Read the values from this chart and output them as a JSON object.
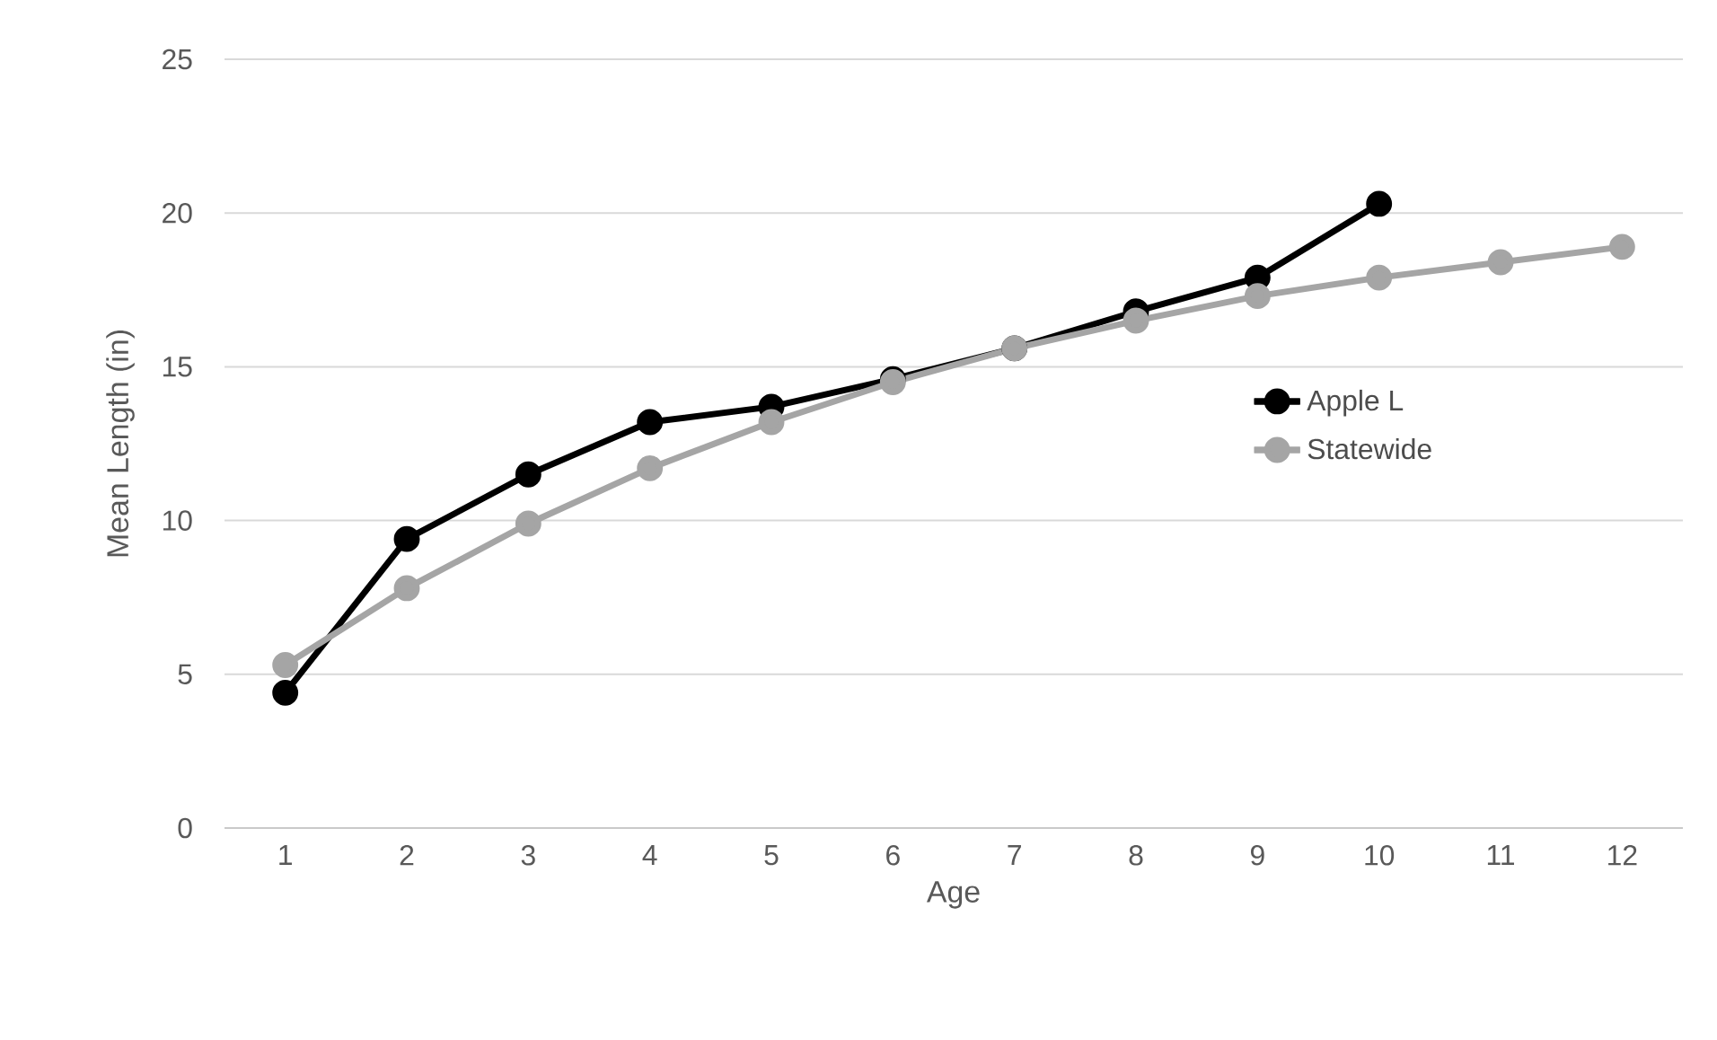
{
  "chart_data": {
    "type": "line",
    "xlabel": "Age",
    "ylabel": "Mean Length (in)",
    "categories": [
      "1",
      "2",
      "3",
      "4",
      "5",
      "6",
      "7",
      "8",
      "9",
      "10",
      "11",
      "12"
    ],
    "series": [
      {
        "name": "Apple L",
        "color": "#000000",
        "values": [
          4.4,
          9.4,
          11.5,
          13.2,
          13.7,
          14.6,
          15.6,
          16.8,
          17.9,
          20.3,
          null,
          null
        ]
      },
      {
        "name": "Statewide",
        "color": "#a5a5a5",
        "values": [
          5.3,
          7.8,
          9.9,
          11.7,
          13.2,
          14.5,
          15.6,
          16.5,
          17.3,
          17.9,
          18.4,
          18.9
        ]
      }
    ],
    "ylim": [
      0,
      25
    ],
    "yticks": [
      0,
      5,
      10,
      15,
      20,
      25
    ],
    "grid": "y",
    "legend": "right",
    "marker": "circle",
    "line_style": "solid"
  }
}
